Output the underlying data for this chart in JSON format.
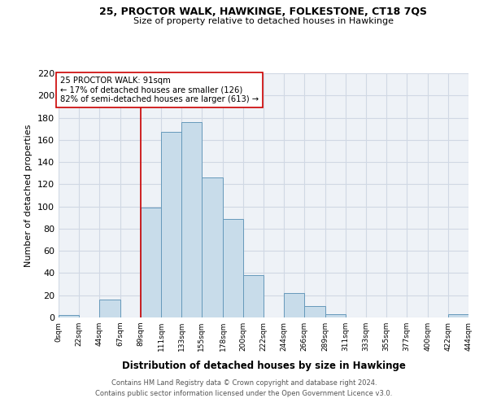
{
  "title1": "25, PROCTOR WALK, HAWKINGE, FOLKESTONE, CT18 7QS",
  "title2": "Size of property relative to detached houses in Hawkinge",
  "xlabel": "Distribution of detached houses by size in Hawkinge",
  "ylabel": "Number of detached properties",
  "bar_edges": [
    0,
    22,
    44,
    67,
    89,
    111,
    133,
    155,
    178,
    200,
    222,
    244,
    266,
    289,
    311,
    333,
    355,
    377,
    400,
    422,
    444
  ],
  "bar_heights": [
    2,
    0,
    16,
    0,
    99,
    167,
    176,
    126,
    89,
    38,
    0,
    22,
    10,
    3,
    0,
    0,
    0,
    0,
    0,
    3
  ],
  "tick_labels": [
    "0sqm",
    "22sqm",
    "44sqm",
    "67sqm",
    "89sqm",
    "111sqm",
    "133sqm",
    "155sqm",
    "178sqm",
    "200sqm",
    "222sqm",
    "244sqm",
    "266sqm",
    "289sqm",
    "311sqm",
    "333sqm",
    "355sqm",
    "377sqm",
    "400sqm",
    "422sqm",
    "444sqm"
  ],
  "bar_color": "#c8dcea",
  "bar_edge_color": "#6699bb",
  "vline_x": 89,
  "vline_color": "#cc0000",
  "annotation_line1": "25 PROCTOR WALK: 91sqm",
  "annotation_line2": "← 17% of detached houses are smaller (126)",
  "annotation_line3": "82% of semi-detached houses are larger (613) →",
  "ylim": [
    0,
    220
  ],
  "yticks": [
    0,
    20,
    40,
    60,
    80,
    100,
    120,
    140,
    160,
    180,
    200,
    220
  ],
  "footer1": "Contains HM Land Registry data © Crown copyright and database right 2024.",
  "footer2": "Contains public sector information licensed under the Open Government Licence v3.0.",
  "bg_color": "#eef2f7",
  "grid_color": "#d0d8e4"
}
